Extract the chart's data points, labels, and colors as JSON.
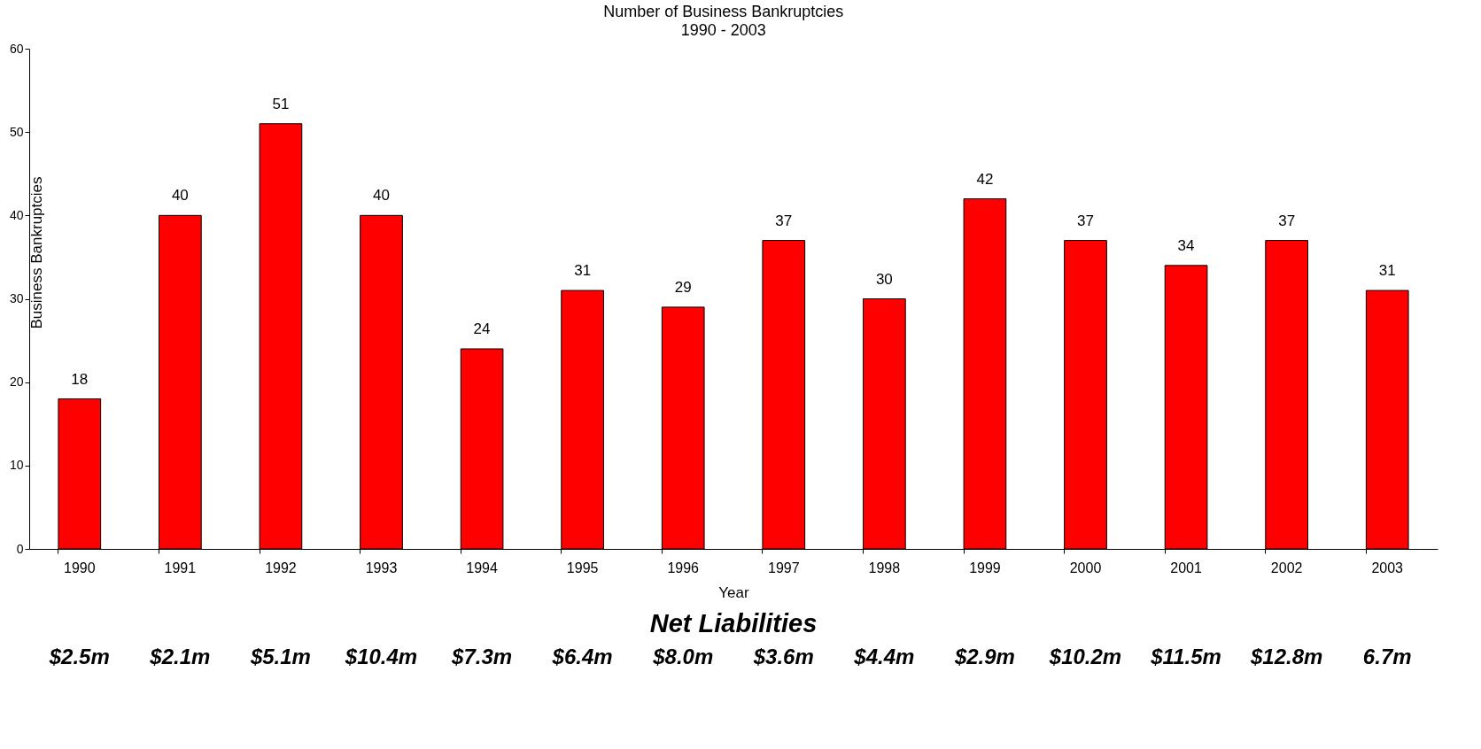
{
  "chart_data": {
    "type": "bar",
    "title": "Number of Business Bankruptcies",
    "subtitle": "1990 - 2003",
    "xlabel": "Year",
    "ylabel": "Business Bankruptcies",
    "categories": [
      "1990",
      "1991",
      "1992",
      "1993",
      "1994",
      "1995",
      "1996",
      "1997",
      "1998",
      "1999",
      "2000",
      "2001",
      "2002",
      "2003"
    ],
    "values": [
      18,
      40,
      51,
      40,
      24,
      31,
      29,
      37,
      30,
      42,
      37,
      34,
      37,
      31
    ],
    "color": "#ff0000",
    "ylim": [
      0,
      60
    ],
    "yticks": [
      0,
      10,
      20,
      30,
      40,
      50,
      60
    ],
    "grid": false,
    "data_labels": true,
    "annotations": [
      "Net  Liabilities",
      "$2.5m",
      "$2.1m",
      "$5.1m",
      "$10.4m",
      "$7.3m",
      "$6.4m",
      "$8.0m",
      "$3.6m",
      "$4.4m",
      "$2.9m",
      "$10.2m",
      "$11.5m",
      "$12.8m",
      "6.7m"
    ]
  }
}
